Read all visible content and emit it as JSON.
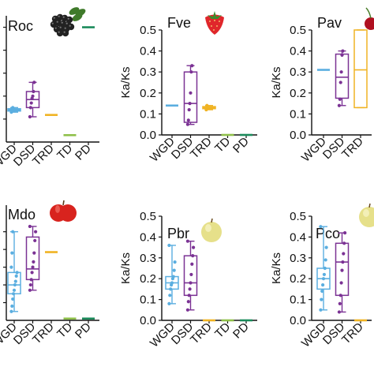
{
  "figure": {
    "categories": [
      "WGD",
      "DSD",
      "TRD",
      "TD",
      "PD"
    ],
    "ylabel": "Ka/Ks",
    "yticks": [
      "0.0",
      "0.1",
      "0.2",
      "0.3",
      "0.4",
      "0.5"
    ]
  },
  "colors": {
    "WGD": "#5aaee0",
    "DSD": "#7b3294",
    "TRD": "#f0b323",
    "TD": "#8fc04a",
    "PD": "#1a8a5a"
  },
  "chart_data": [
    {
      "type": "box",
      "title": "Roc",
      "icon": "blackberry-icon",
      "categories": [
        "WGD",
        "DSD",
        "TRD",
        "TD",
        "PD"
      ],
      "ylim": [
        0,
        0.55
      ],
      "boxes": [
        {
          "category": "WGD",
          "min": 0.13,
          "q1": 0.135,
          "median": 0.14,
          "q3": 0.145,
          "max": 0.15,
          "points": [
            0.13,
            0.14,
            0.15
          ]
        },
        {
          "category": "DSD",
          "min": 0.11,
          "q1": 0.15,
          "median": 0.185,
          "q3": 0.22,
          "max": 0.26,
          "points": [
            0.11,
            0.15,
            0.17,
            0.19,
            0.2,
            0.22,
            0.26
          ]
        },
        {
          "category": "TRD",
          "min": 0.118,
          "q1": 0.118,
          "median": 0.118,
          "q3": 0.118,
          "max": 0.118,
          "points": []
        },
        {
          "category": "TD",
          "min": 0.03,
          "q1": 0.03,
          "median": 0.03,
          "q3": 0.03,
          "max": 0.03,
          "points": []
        },
        {
          "category": "PD",
          "min": 0.5,
          "q1": 0.5,
          "median": 0.5,
          "q3": 0.5,
          "max": 0.5,
          "points": []
        }
      ]
    },
    {
      "type": "box",
      "title": "Fve",
      "icon": "strawberry-icon",
      "categories": [
        "WGD",
        "DSD",
        "TRD",
        "TD",
        "PD"
      ],
      "ylim": [
        0,
        0.5
      ],
      "boxes": [
        {
          "category": "WGD",
          "min": 0.14,
          "q1": 0.14,
          "median": 0.14,
          "q3": 0.14,
          "max": 0.14,
          "points": []
        },
        {
          "category": "DSD",
          "min": 0.05,
          "q1": 0.06,
          "median": 0.15,
          "q3": 0.3,
          "max": 0.33,
          "points": [
            0.05,
            0.07,
            0.12,
            0.15,
            0.2,
            0.3,
            0.33
          ]
        },
        {
          "category": "TRD",
          "min": 0.12,
          "q1": 0.125,
          "median": 0.13,
          "q3": 0.135,
          "max": 0.14,
          "points": [
            0.12,
            0.14
          ]
        },
        {
          "category": "TD",
          "min": 0.0,
          "q1": 0.0,
          "median": 0.0,
          "q3": 0.0,
          "max": 0.0,
          "points": []
        },
        {
          "category": "PD",
          "min": 0.0,
          "q1": 0.0,
          "median": 0.0,
          "q3": 0.0,
          "max": 0.0,
          "points": []
        }
      ]
    },
    {
      "type": "box",
      "title": "Pav",
      "icon": "cherry-icon",
      "categories": [
        "WGD",
        "DSD",
        "TRD"
      ],
      "ylim": [
        0,
        0.5
      ],
      "boxes": [
        {
          "category": "WGD",
          "min": 0.31,
          "q1": 0.31,
          "median": 0.31,
          "q3": 0.31,
          "max": 0.31,
          "points": []
        },
        {
          "category": "DSD",
          "min": 0.14,
          "q1": 0.175,
          "median": 0.275,
          "q3": 0.385,
          "max": 0.4,
          "points": [
            0.14,
            0.17,
            0.25,
            0.3,
            0.38,
            0.4
          ]
        },
        {
          "category": "TRD",
          "min": 0.13,
          "q1": 0.13,
          "median": 0.31,
          "q3": 0.5,
          "max": 0.5,
          "points": []
        }
      ]
    },
    {
      "type": "box",
      "title": "Mdo",
      "icon": "apple-icon",
      "categories": [
        "WGD",
        "DSD",
        "TRD",
        "TD",
        "PD"
      ],
      "ylim": [
        0,
        0.65
      ],
      "boxes": [
        {
          "category": "WGD",
          "min": 0.05,
          "q1": 0.15,
          "median": 0.2,
          "q3": 0.27,
          "max": 0.5,
          "points": [
            0.05,
            0.08,
            0.12,
            0.15,
            0.17,
            0.2,
            0.22,
            0.25,
            0.27,
            0.3,
            0.38,
            0.5
          ]
        },
        {
          "category": "DSD",
          "min": 0.17,
          "q1": 0.23,
          "median": 0.29,
          "q3": 0.47,
          "max": 0.53,
          "points": [
            0.17,
            0.2,
            0.23,
            0.27,
            0.3,
            0.33,
            0.38,
            0.45,
            0.5,
            0.53
          ]
        },
        {
          "category": "TRD",
          "min": 0.385,
          "q1": 0.385,
          "median": 0.385,
          "q3": 0.385,
          "max": 0.385,
          "points": []
        },
        {
          "category": "TD",
          "min": 0.01,
          "q1": 0.01,
          "median": 0.01,
          "q3": 0.01,
          "max": 0.01,
          "points": []
        },
        {
          "category": "PD",
          "min": 0.01,
          "q1": 0.01,
          "median": 0.01,
          "q3": 0.01,
          "max": 0.01,
          "points": []
        }
      ]
    },
    {
      "type": "box",
      "title": "Pbr",
      "icon": "pear-icon",
      "categories": [
        "WGD",
        "DSD",
        "TRD",
        "TD",
        "PD"
      ],
      "ylim": [
        0,
        0.5
      ],
      "boxes": [
        {
          "category": "WGD",
          "min": 0.08,
          "q1": 0.15,
          "median": 0.18,
          "q3": 0.21,
          "max": 0.36,
          "points": [
            0.08,
            0.12,
            0.15,
            0.17,
            0.18,
            0.2,
            0.21,
            0.24,
            0.28,
            0.36
          ]
        },
        {
          "category": "DSD",
          "min": 0.05,
          "q1": 0.12,
          "median": 0.18,
          "q3": 0.31,
          "max": 0.38,
          "points": [
            0.05,
            0.09,
            0.12,
            0.15,
            0.18,
            0.22,
            0.27,
            0.31,
            0.35,
            0.38
          ]
        },
        {
          "category": "TRD",
          "min": 0.0,
          "q1": 0.0,
          "median": 0.0,
          "q3": 0.0,
          "max": 0.0,
          "points": []
        },
        {
          "category": "TD",
          "min": 0.0,
          "q1": 0.0,
          "median": 0.0,
          "q3": 0.0,
          "max": 0.0,
          "points": []
        },
        {
          "category": "PD",
          "min": 0.0,
          "q1": 0.0,
          "median": 0.0,
          "q3": 0.0,
          "max": 0.0,
          "points": []
        }
      ]
    },
    {
      "type": "box",
      "title": "Pco",
      "icon": "pear-icon",
      "categories": [
        "WGD",
        "DSD",
        "TRD"
      ],
      "ylim": [
        0,
        0.5
      ],
      "boxes": [
        {
          "category": "WGD",
          "min": 0.05,
          "q1": 0.15,
          "median": 0.2,
          "q3": 0.25,
          "max": 0.45,
          "points": [
            0.05,
            0.1,
            0.14,
            0.17,
            0.2,
            0.22,
            0.25,
            0.29,
            0.35,
            0.45
          ]
        },
        {
          "category": "DSD",
          "min": 0.04,
          "q1": 0.12,
          "median": 0.28,
          "q3": 0.37,
          "max": 0.42,
          "points": [
            0.04,
            0.08,
            0.12,
            0.18,
            0.24,
            0.28,
            0.32,
            0.37,
            0.42
          ]
        },
        {
          "category": "TRD",
          "min": 0.0,
          "q1": 0.0,
          "median": 0.0,
          "q3": 0.0,
          "max": 0.0,
          "points": []
        }
      ]
    }
  ]
}
